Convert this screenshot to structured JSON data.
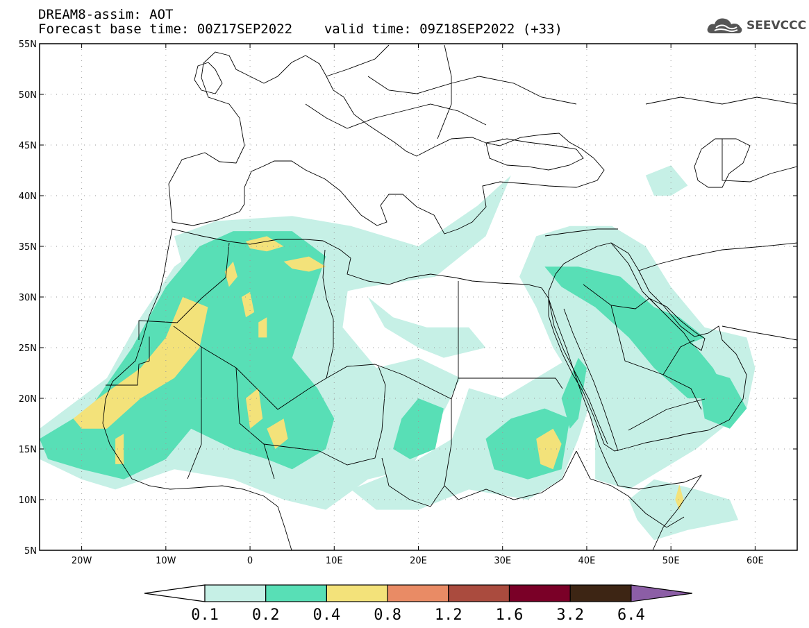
{
  "header": {
    "model_line": "DREAM8-assim: AOT",
    "base_time_line": "Forecast base time: 00Z17SEP2022",
    "valid_time_line": "valid time: 09Z18SEP2022 (+33)",
    "logo_text": "SEEVCCC",
    "logo_icon": "cloud-icon"
  },
  "map": {
    "extent": {
      "lon_min": -25,
      "lon_max": 65,
      "lat_min": 5,
      "lat_max": 55
    },
    "lat_ticks": [
      "5N",
      "10N",
      "15N",
      "20N",
      "25N",
      "30N",
      "35N",
      "40N",
      "45N",
      "50N",
      "55N"
    ],
    "lon_ticks": [
      "20W",
      "10W",
      "0",
      "10E",
      "20E",
      "30E",
      "40E",
      "50E",
      "60E"
    ],
    "lat_values": [
      5,
      10,
      15,
      20,
      25,
      30,
      35,
      40,
      45,
      50,
      55
    ],
    "lon_values": [
      -20,
      -10,
      0,
      10,
      20,
      30,
      40,
      50,
      60
    ],
    "field": "Aerosol Optical Thickness",
    "regions": [
      {
        "name": "mediterranean-plume",
        "level": 1,
        "points": [
          [
            -9,
            36
          ],
          [
            -4,
            37.5
          ],
          [
            5,
            38
          ],
          [
            12,
            37
          ],
          [
            20,
            35
          ],
          [
            27,
            39
          ],
          [
            31,
            42
          ],
          [
            28,
            36
          ],
          [
            22,
            32
          ],
          [
            14,
            31
          ],
          [
            8,
            30
          ],
          [
            0,
            31
          ],
          [
            -8,
            33
          ]
        ]
      },
      {
        "name": "sahara-west-belt",
        "level": 1,
        "points": [
          [
            -25,
            17
          ],
          [
            -17,
            22
          ],
          [
            -13,
            28
          ],
          [
            -9,
            33
          ],
          [
            -4,
            36
          ],
          [
            3,
            37
          ],
          [
            9,
            37
          ],
          [
            12,
            33
          ],
          [
            11,
            27
          ],
          [
            15,
            23
          ],
          [
            20,
            24
          ],
          [
            25,
            22
          ],
          [
            22,
            17
          ],
          [
            19,
            13
          ],
          [
            14,
            12
          ],
          [
            9,
            9
          ],
          [
            4,
            10
          ],
          [
            -2,
            12
          ],
          [
            -9,
            13
          ],
          [
            -16,
            11
          ],
          [
            -20,
            12
          ],
          [
            -25,
            14
          ]
        ]
      },
      {
        "name": "libya-egypt-patch",
        "level": 1,
        "points": [
          [
            14,
            30
          ],
          [
            17,
            28
          ],
          [
            21,
            27
          ],
          [
            26,
            27
          ],
          [
            28,
            25
          ],
          [
            23,
            24
          ],
          [
            20,
            25
          ],
          [
            16,
            27
          ]
        ]
      },
      {
        "name": "central-africa-band",
        "level": 1,
        "points": [
          [
            12,
            11
          ],
          [
            18,
            13
          ],
          [
            24,
            16
          ],
          [
            26,
            21
          ],
          [
            30,
            20
          ],
          [
            34,
            22
          ],
          [
            38,
            24
          ],
          [
            41,
            21
          ],
          [
            39,
            16
          ],
          [
            37,
            12
          ],
          [
            33,
            10
          ],
          [
            26,
            11
          ],
          [
            20,
            9
          ],
          [
            15,
            9
          ]
        ]
      },
      {
        "name": "arabia-plume",
        "level": 1,
        "points": [
          [
            32,
            32
          ],
          [
            34,
            36
          ],
          [
            38,
            37
          ],
          [
            43,
            37
          ],
          [
            47,
            35
          ],
          [
            50,
            31
          ],
          [
            54,
            27
          ],
          [
            59,
            26
          ],
          [
            60,
            23
          ],
          [
            59,
            19
          ],
          [
            53,
            15
          ],
          [
            49,
            13
          ],
          [
            45,
            11
          ],
          [
            41,
            12
          ],
          [
            41,
            17
          ],
          [
            39,
            21
          ],
          [
            36,
            25
          ],
          [
            34,
            29
          ]
        ]
      },
      {
        "name": "somalia-patch",
        "level": 1,
        "points": [
          [
            45,
            10
          ],
          [
            48,
            12
          ],
          [
            53,
            11
          ],
          [
            57,
            10
          ],
          [
            58,
            8
          ],
          [
            52,
            7
          ],
          [
            48,
            6
          ],
          [
            46,
            8
          ]
        ]
      },
      {
        "name": "caspian-patch",
        "level": 1,
        "points": [
          [
            47,
            42
          ],
          [
            50,
            43
          ],
          [
            52,
            41
          ],
          [
            50,
            40
          ],
          [
            48,
            40
          ]
        ]
      },
      {
        "name": "sahara-west-core",
        "level": 2,
        "points": [
          [
            -25,
            16
          ],
          [
            -19,
            19
          ],
          [
            -14,
            25
          ],
          [
            -10,
            31
          ],
          [
            -6,
            35
          ],
          [
            -2,
            36.5
          ],
          [
            5,
            36.5
          ],
          [
            9,
            34
          ],
          [
            7,
            29
          ],
          [
            5,
            24
          ],
          [
            8,
            21
          ],
          [
            10,
            18
          ],
          [
            9,
            15
          ],
          [
            5,
            13
          ],
          [
            2,
            14
          ],
          [
            -2,
            15
          ],
          [
            -7,
            17
          ],
          [
            -10,
            14
          ],
          [
            -15,
            12
          ],
          [
            -20,
            13
          ],
          [
            -24,
            14
          ]
        ]
      },
      {
        "name": "arabia-core",
        "level": 2,
        "points": [
          [
            35,
            33
          ],
          [
            39,
            33
          ],
          [
            44,
            32
          ],
          [
            48,
            29
          ],
          [
            51,
            27
          ],
          [
            55,
            23
          ],
          [
            57,
            20
          ],
          [
            52,
            20
          ],
          [
            48,
            23
          ],
          [
            45,
            26
          ],
          [
            41,
            29
          ],
          [
            37,
            31
          ]
        ]
      },
      {
        "name": "oman-core",
        "level": 2,
        "points": [
          [
            53,
            23
          ],
          [
            57,
            22
          ],
          [
            59,
            19
          ],
          [
            57,
            17
          ],
          [
            54,
            18
          ]
        ]
      },
      {
        "name": "sudan-core",
        "level": 2,
        "points": [
          [
            28,
            16
          ],
          [
            31,
            18
          ],
          [
            35,
            19
          ],
          [
            38,
            18
          ],
          [
            37,
            13
          ],
          [
            33,
            12
          ],
          [
            29,
            13
          ]
        ]
      },
      {
        "name": "chad-core",
        "level": 2,
        "points": [
          [
            17,
            15
          ],
          [
            18,
            18
          ],
          [
            20,
            20
          ],
          [
            23,
            19
          ],
          [
            22,
            15
          ],
          [
            19,
            14
          ]
        ]
      },
      {
        "name": "red-sea-core",
        "level": 2,
        "points": [
          [
            37,
            20
          ],
          [
            39,
            24
          ],
          [
            40,
            23
          ],
          [
            39,
            18
          ],
          [
            38,
            17
          ]
        ]
      },
      {
        "name": "persian-gulf-core",
        "level": 2,
        "points": [
          [
            48,
            29
          ],
          [
            51,
            28
          ],
          [
            54,
            26
          ],
          [
            51,
            25
          ],
          [
            49,
            26
          ]
        ]
      },
      {
        "name": "mauritania-hot",
        "level": 3,
        "points": [
          [
            -21,
            18
          ],
          [
            -18,
            20
          ],
          [
            -13,
            23
          ],
          [
            -10,
            26
          ],
          [
            -8,
            30
          ],
          [
            -5,
            29
          ],
          [
            -6,
            25
          ],
          [
            -9,
            22
          ],
          [
            -13,
            20
          ],
          [
            -17,
            17
          ],
          [
            -20,
            17
          ]
        ]
      },
      {
        "name": "mauritania-hot-2",
        "level": 3,
        "points": [
          [
            -16,
            16
          ],
          [
            -15,
            16.5
          ],
          [
            -15,
            13.5
          ],
          [
            -16,
            13.5
          ]
        ]
      },
      {
        "name": "algeria-hot-1",
        "level": 3,
        "points": [
          [
            -0.5,
            35.5
          ],
          [
            2,
            36
          ],
          [
            4,
            35
          ],
          [
            2,
            34.5
          ],
          [
            0,
            34.8
          ]
        ]
      },
      {
        "name": "algeria-hot-2",
        "level": 3,
        "points": [
          [
            4,
            33.5
          ],
          [
            7,
            34
          ],
          [
            9,
            33
          ],
          [
            7,
            32.5
          ],
          [
            5,
            32.8
          ]
        ]
      },
      {
        "name": "algeria-hot-3",
        "level": 3,
        "points": [
          [
            -3,
            32.5
          ],
          [
            -2,
            33.5
          ],
          [
            -1.5,
            32
          ],
          [
            -2.5,
            31
          ]
        ]
      },
      {
        "name": "algeria-hot-4",
        "level": 3,
        "points": [
          [
            -1,
            30
          ],
          [
            0,
            30.5
          ],
          [
            0.5,
            28.5
          ],
          [
            -0.5,
            28
          ]
        ]
      },
      {
        "name": "algeria-hot-5",
        "level": 3,
        "points": [
          [
            1,
            27.5
          ],
          [
            2,
            28
          ],
          [
            2,
            26
          ],
          [
            1,
            26
          ]
        ]
      },
      {
        "name": "niger-hot-1",
        "level": 3,
        "points": [
          [
            -0.5,
            20
          ],
          [
            1,
            21
          ],
          [
            1.5,
            18
          ],
          [
            0,
            17
          ]
        ]
      },
      {
        "name": "niger-hot-2",
        "level": 3,
        "points": [
          [
            2,
            17
          ],
          [
            4,
            18
          ],
          [
            4.5,
            16
          ],
          [
            3,
            15
          ]
        ]
      },
      {
        "name": "sudan-hot",
        "level": 3,
        "points": [
          [
            34,
            16
          ],
          [
            36,
            17
          ],
          [
            37,
            15.5
          ],
          [
            36,
            13
          ],
          [
            34.5,
            13.5
          ]
        ]
      },
      {
        "name": "somalia-hot",
        "level": 3,
        "points": [
          [
            50.5,
            10
          ],
          [
            51,
            11.5
          ],
          [
            51.5,
            10
          ],
          [
            51,
            9
          ]
        ]
      }
    ]
  },
  "colorbar": {
    "labels": [
      "0.1",
      "0.2",
      "0.4",
      "0.8",
      "1.2",
      "1.6",
      "3.2",
      "6.4"
    ],
    "colors": [
      "#c6f0e6",
      "#58dfb6",
      "#f3e27a",
      "#e98b65",
      "#aa4b3e",
      "#7a0027",
      "#3d2514"
    ],
    "under_color": "#ffffff",
    "over_color": "#8c5ea6"
  }
}
